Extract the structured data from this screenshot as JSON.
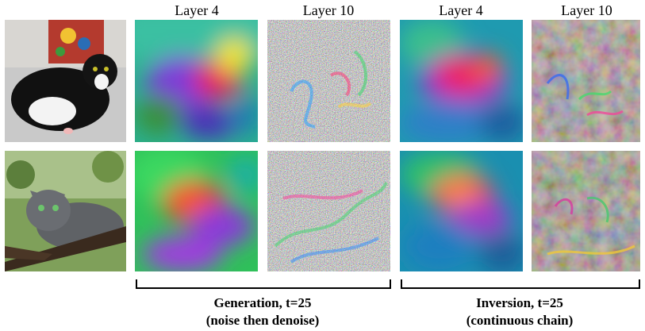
{
  "column_headers": [
    "Layer 4",
    "Layer 10",
    "Layer 4",
    "Layer 10"
  ],
  "groups": [
    {
      "line1": "Generation, t=25",
      "line2": "(noise then denoise)"
    },
    {
      "line1": "Inversion, t=25",
      "line2": "(continuous chain)"
    }
  ],
  "rows": [
    {
      "photo": "black-and-white-cat"
    },
    {
      "photo": "gray-cat-on-branch"
    }
  ]
}
